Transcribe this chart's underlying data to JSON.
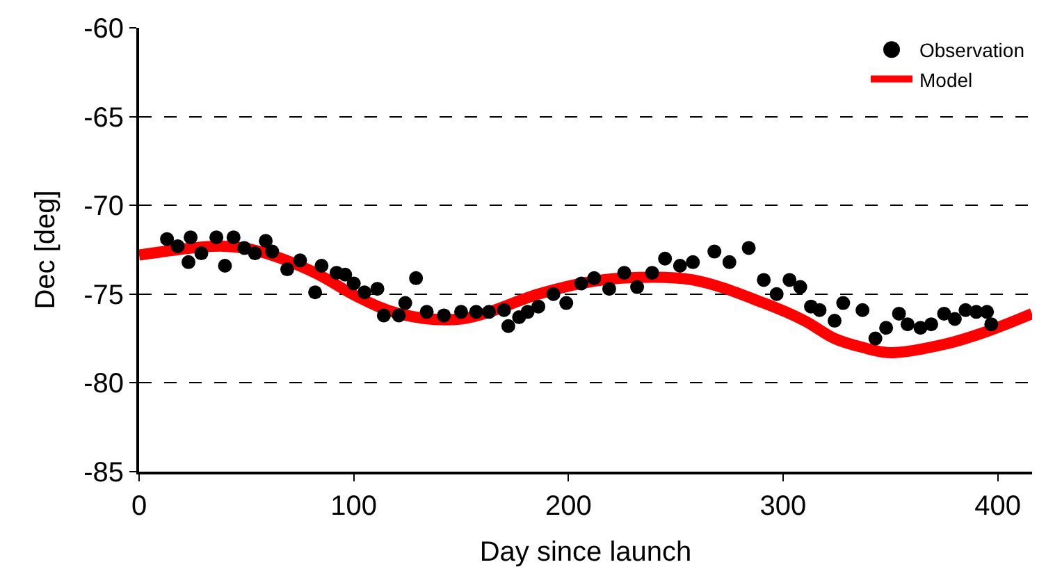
{
  "chart_data": {
    "type": "scatter",
    "xlabel": "Day since launch",
    "ylabel": "Dec [deg]",
    "xlim": [
      0,
      416
    ],
    "xticks": [
      0,
      100,
      200,
      300,
      400
    ],
    "ylim": [
      -85,
      -60
    ],
    "yticks": [
      -85,
      -80,
      -75,
      -70,
      -65,
      -60
    ],
    "grid": "y",
    "legend": "top right",
    "series": [
      {
        "name": "Observation",
        "color": "#000000",
        "marker": "circle",
        "x": [
          13,
          18,
          23,
          24,
          29,
          36,
          40,
          44,
          49,
          54,
          59,
          62,
          69,
          75,
          82,
          85,
          92,
          96,
          100,
          105,
          111,
          114,
          121,
          124,
          129,
          134,
          142,
          150,
          157,
          163,
          170,
          172,
          177,
          181,
          186,
          193,
          199,
          206,
          212,
          219,
          226,
          232,
          239,
          245,
          252,
          258,
          268,
          275,
          284,
          291,
          297,
          303,
          308,
          313,
          317,
          324,
          328,
          337,
          343,
          348,
          354,
          358,
          364,
          369,
          375,
          380,
          385,
          390,
          395,
          397
        ],
        "values": [
          -71.9,
          -72.3,
          -73.2,
          -71.8,
          -72.7,
          -71.8,
          -73.4,
          -71.8,
          -72.4,
          -72.7,
          -72.0,
          -72.6,
          -73.6,
          -73.1,
          -74.9,
          -73.4,
          -73.8,
          -73.9,
          -74.4,
          -74.9,
          -74.7,
          -76.2,
          -76.2,
          -75.5,
          -74.1,
          -76.0,
          -76.2,
          -76.0,
          -76.0,
          -76.0,
          -75.9,
          -76.8,
          -76.3,
          -76.0,
          -75.7,
          -75.0,
          -75.5,
          -74.4,
          -74.1,
          -74.7,
          -73.8,
          -74.6,
          -73.8,
          -73.0,
          -73.4,
          -73.2,
          -72.6,
          -73.2,
          -72.4,
          -74.2,
          -75.0,
          -74.2,
          -74.6,
          -75.7,
          -75.9,
          -76.5,
          -75.5,
          -75.9,
          -77.5,
          -76.9,
          -76.1,
          -76.7,
          -76.9,
          -76.7,
          -76.1,
          -76.4,
          -75.9,
          -76.0,
          -76.0,
          -76.7
        ]
      },
      {
        "name": "Model",
        "color": "#ff0000",
        "type": "line",
        "x": [
          0,
          39,
          56,
          82,
          101,
          121,
          150,
          186,
          206,
          225,
          258,
          291,
          310,
          324,
          337,
          350,
          376,
          395,
          416
        ],
        "values": [
          -72.8,
          -72.3,
          -72.6,
          -73.8,
          -75.1,
          -76.1,
          -76.4,
          -75.0,
          -74.4,
          -74.1,
          -74.2,
          -75.5,
          -76.5,
          -77.5,
          -78.0,
          -78.3,
          -77.8,
          -77.1,
          -76.1
        ]
      }
    ]
  }
}
